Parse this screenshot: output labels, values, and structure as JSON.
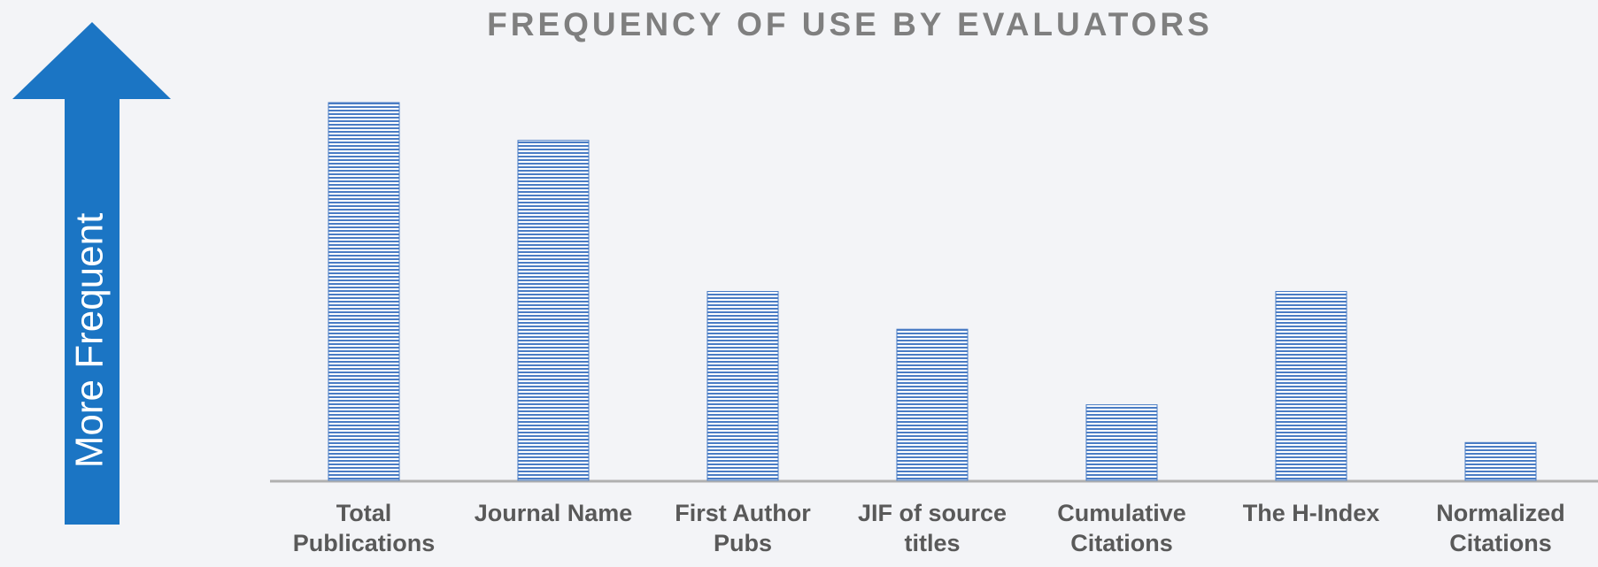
{
  "chart_data": {
    "type": "bar",
    "title": "FREQUENCY OF USE BY EVALUATORS",
    "annotation": "More Frequent",
    "categories": [
      "Total Publications",
      "Journal Name",
      "First Author Pubs",
      "JIF of source titles",
      "Cumulative Citations",
      "The H-Index",
      "Normalized Citations"
    ],
    "values": [
      10,
      9,
      5,
      4,
      2,
      5,
      1
    ],
    "color": "#4a7cc4"
  }
}
